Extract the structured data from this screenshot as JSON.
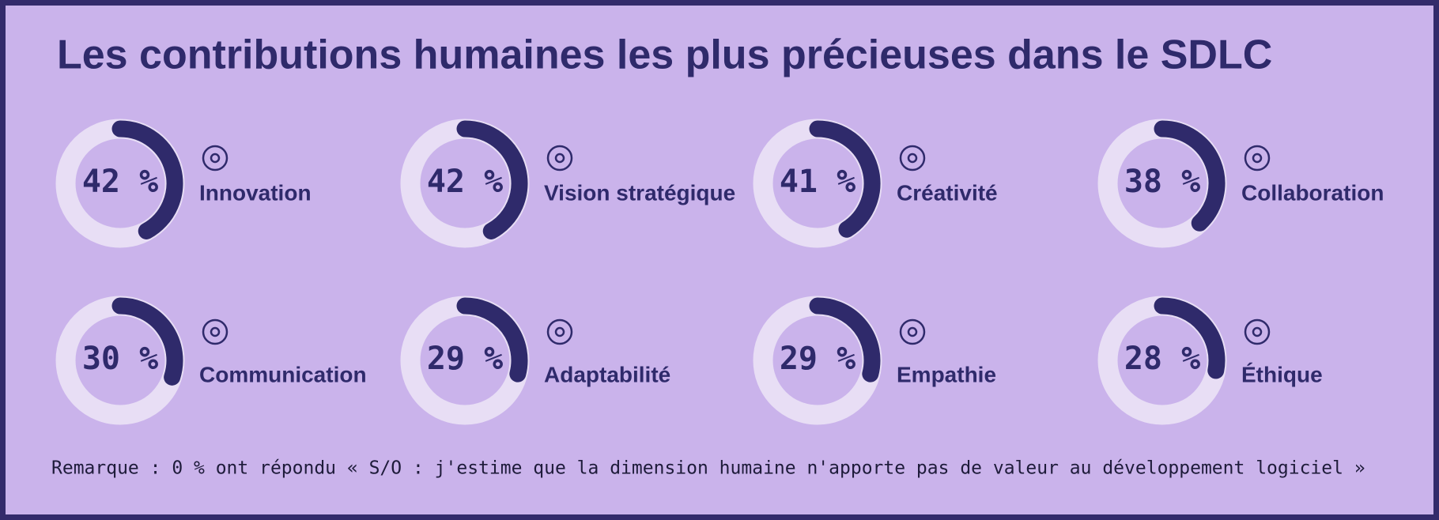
{
  "chart_data": {
    "type": "donut",
    "title": "Les contributions humaines les plus précieuses dans le SDLC",
    "categories": [
      "Innovation",
      "Vision stratégique",
      "Créativité",
      "Collaboration",
      "Communication",
      "Adaptabilité",
      "Empathie",
      "Éthique"
    ],
    "values": [
      42,
      42,
      41,
      38,
      30,
      29,
      29,
      28
    ],
    "value_labels": [
      "42 %",
      "42 %",
      "41 %",
      "38 %",
      "30 %",
      "29 %",
      "29 %",
      "28 %"
    ],
    "color": "#2f2a6b",
    "track_color": "#e8def5",
    "note": "Remarque : 0 % ont répondu « S/O : j'estime que la dimension humaine n'apporte pas de valeur au développement logiciel »"
  }
}
